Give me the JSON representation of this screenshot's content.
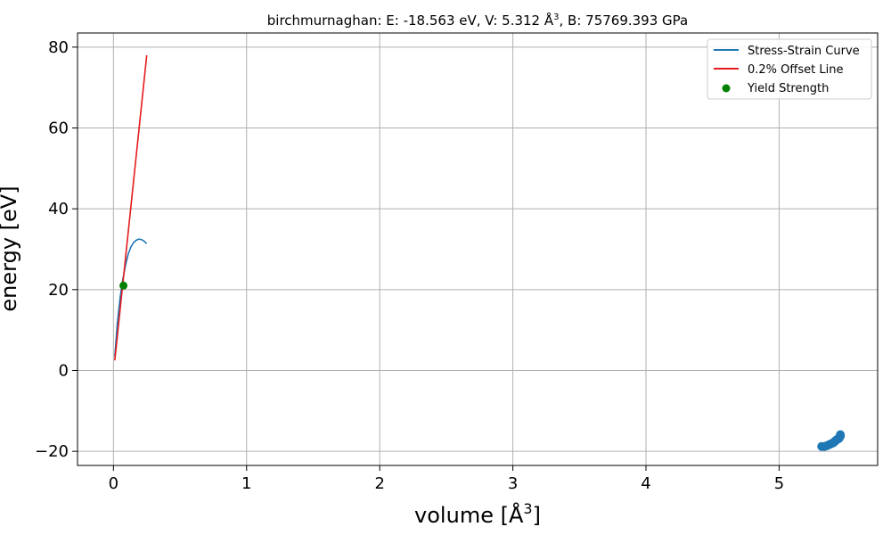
{
  "chart_data": {
    "type": "line",
    "title": "birchmurnaghan: E: -18.563 eV, V: 5.312 Å³, B: 75769.393 GPa",
    "title_prefix": "birchmurnaghan: E: -18.563 eV, V: 5.312 Å",
    "title_suffix": ", B: 75769.393 GPa",
    "xlabel_base": "volume [Å",
    "xlabel_end": "]",
    "superscript": "3",
    "ylabel": "energy [eV]",
    "xlim": [
      -0.27,
      5.74
    ],
    "ylim": [
      -23.5,
      83.5
    ],
    "x_ticks": [
      0,
      1,
      2,
      3,
      4,
      5
    ],
    "y_ticks": [
      -20,
      0,
      20,
      40,
      60,
      80
    ],
    "x_tick_labels": [
      "0",
      "1",
      "2",
      "3",
      "4",
      "5"
    ],
    "y_tick_labels": [
      "−20",
      "0",
      "20",
      "40",
      "60",
      "80"
    ],
    "grid": true,
    "legend_position": "top-right",
    "series": [
      {
        "name": "Stress-Strain Curve",
        "kind": "line",
        "color": "#1f77b4",
        "x": [
          0.01,
          0.03,
          0.05,
          0.07,
          0.09,
          0.11,
          0.13,
          0.15,
          0.17,
          0.19,
          0.21,
          0.23,
          0.25
        ],
        "y": [
          3.5,
          12.0,
          18.0,
          22.5,
          26.0,
          28.7,
          30.5,
          31.6,
          32.2,
          32.5,
          32.4,
          32.0,
          31.4
        ]
      },
      {
        "name": "0.2% Offset Line",
        "kind": "line",
        "color": "#e41a1c",
        "x": [
          0.01,
          0.25
        ],
        "y": [
          2.5,
          78.0
        ]
      },
      {
        "name": "Yield Strength",
        "kind": "scatter",
        "color": "#008000",
        "x": [
          0.075
        ],
        "y": [
          21.0
        ]
      },
      {
        "name": "",
        "kind": "scatter",
        "color": "#1f77b4",
        "x": [
          5.32,
          5.34,
          5.36,
          5.38,
          5.4,
          5.41,
          5.42,
          5.43,
          5.44,
          5.45,
          5.455,
          5.46,
          5.46
        ],
        "y": [
          -18.8,
          -18.8,
          -18.6,
          -18.3,
          -18.0,
          -17.8,
          -17.5,
          -17.2,
          -17.0,
          -16.8,
          -16.5,
          -16.2,
          -15.9
        ]
      }
    ]
  }
}
